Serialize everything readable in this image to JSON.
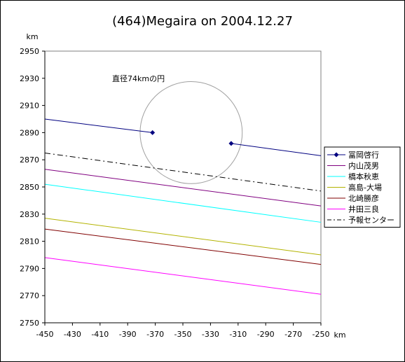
{
  "chart_data": {
    "type": "line",
    "title": "(464)Megaira on 2004.12.27",
    "xlabel": "km",
    "ylabel": "km",
    "xlim": [
      -450,
      -250
    ],
    "ylim": [
      2750,
      2950
    ],
    "x_ticks": [
      "-450",
      "-430",
      "-410",
      "-390",
      "-370",
      "-350",
      "-330",
      "-310",
      "-290",
      "-270",
      "-250"
    ],
    "y_ticks": [
      "2950",
      "2930",
      "2910",
      "2890",
      "2870",
      "2850",
      "2830",
      "2810",
      "2790",
      "2770",
      "2750"
    ],
    "annotation": "直径74kmの円",
    "circle": {
      "center": [
        -344,
        2890
      ],
      "diameter_km": 74
    },
    "legend_position": "right",
    "grid": false,
    "series": [
      {
        "name": "冨岡啓行",
        "color": "#000080",
        "style": "solid-markers",
        "segments": [
          [
            [
              -450,
              2900
            ],
            [
              -372,
              2890
            ]
          ],
          [
            [
              -315,
              2882
            ],
            [
              -250,
              2873
            ]
          ]
        ],
        "markers": [
          [
            -372,
            2890
          ],
          [
            -315,
            2882
          ]
        ]
      },
      {
        "name": "内山茂男",
        "color": "#800080",
        "style": "solid",
        "segments": [
          [
            [
              -450,
              2863
            ],
            [
              -250,
              2836
            ]
          ]
        ]
      },
      {
        "name": "橋本秋恵",
        "color": "#00ffff",
        "style": "solid",
        "segments": [
          [
            [
              -450,
              2852
            ],
            [
              -250,
              2824
            ]
          ]
        ]
      },
      {
        "name": "高島-大場",
        "color": "#b3b300",
        "style": "solid",
        "segments": [
          [
            [
              -450,
              2827
            ],
            [
              -250,
              2800
            ]
          ]
        ]
      },
      {
        "name": "北崎勝彦",
        "color": "#800000",
        "style": "solid",
        "segments": [
          [
            [
              -450,
              2819
            ],
            [
              -250,
              2793
            ]
          ]
        ]
      },
      {
        "name": "井田三良",
        "color": "#ff00ff",
        "style": "solid",
        "segments": [
          [
            [
              -450,
              2798
            ],
            [
              -250,
              2771
            ]
          ]
        ]
      },
      {
        "name": "予報センター",
        "color": "#000000",
        "style": "dashdot",
        "segments": [
          [
            [
              -450,
              2875
            ],
            [
              -250,
              2847
            ]
          ]
        ]
      }
    ]
  }
}
